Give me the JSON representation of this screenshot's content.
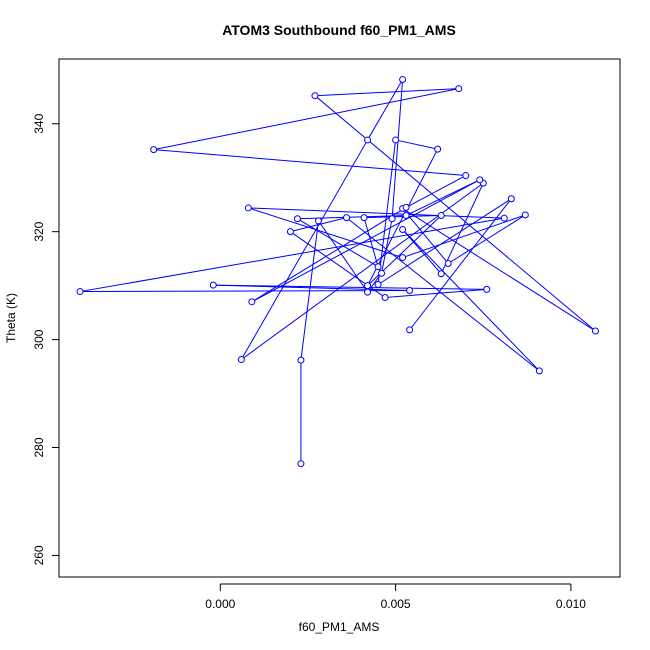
{
  "chart_data": {
    "type": "line",
    "title": "ATOM3 Southbound f60_PM1_AMS",
    "xlabel": "f60_PM1_AMS",
    "ylabel": "Theta (K)",
    "xlim": [
      -0.0046,
      0.0114
    ],
    "ylim": [
      256,
      352
    ],
    "xticks": [
      0.0,
      0.005,
      0.01
    ],
    "xtick_labels": [
      "0.000",
      "0.005",
      "0.010"
    ],
    "yticks": [
      260,
      280,
      300,
      320,
      340
    ],
    "ytick_labels": [
      "260",
      "280",
      "300",
      "320",
      "340"
    ],
    "grid": false,
    "legend": "none",
    "series": [
      {
        "color": "#0000ff",
        "marker": "open-circle",
        "x": [
          0.0023,
          0.0023,
          0.0028,
          0.0042,
          0.0046,
          0.0049,
          0.0052,
          0.0042,
          0.0006,
          0.0075,
          0.0063,
          0.0052,
          0.0091,
          0.0036,
          0.002,
          0.0047,
          0.0076,
          -0.0002,
          0.0054,
          -0.004,
          0.0081,
          0.0008,
          0.0052,
          0.0087,
          0.0065,
          0.0052,
          0.0107,
          0.0027,
          0.0068,
          -0.0019,
          0.007,
          0.0053,
          0.0009,
          0.0074,
          0.0053,
          0.0022,
          0.0045,
          0.0041,
          0.0063,
          0.0042,
          0.0062,
          0.005,
          0.0045,
          0.0083,
          0.0054
        ],
        "y": [
          277.0,
          296.2,
          322.0,
          308.8,
          312.3,
          322.4,
          348.2,
          337.0,
          296.3,
          329.0,
          312.2,
          320.4,
          294.2,
          322.6,
          320.0,
          307.8,
          309.3,
          310.1,
          309.1,
          308.9,
          322.5,
          324.4,
          315.2,
          323.1,
          314.1,
          324.3,
          301.6,
          345.2,
          346.5,
          335.2,
          330.4,
          324.5,
          307.0,
          329.6,
          323.0,
          322.4,
          313.5,
          322.6,
          323.0,
          310.0,
          335.3,
          337.0,
          310.2,
          326.1,
          301.8
        ]
      }
    ]
  }
}
